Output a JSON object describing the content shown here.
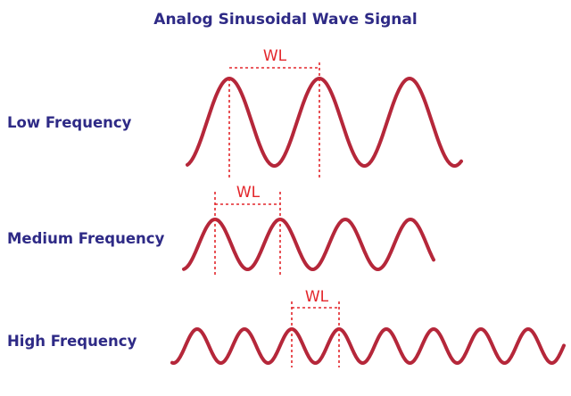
{
  "title": "Analog Sinusoidal Wave Signal",
  "colors": {
    "title_text": "#2e2a86",
    "wave": "#b5273a",
    "marker": "#e3262b"
  },
  "rows": [
    {
      "label": "Low Frequency",
      "wl_label": "WL"
    },
    {
      "label": "Medium Frequency",
      "wl_label": "WL"
    },
    {
      "label": "High Frequency",
      "wl_label": "WL"
    }
  ]
}
